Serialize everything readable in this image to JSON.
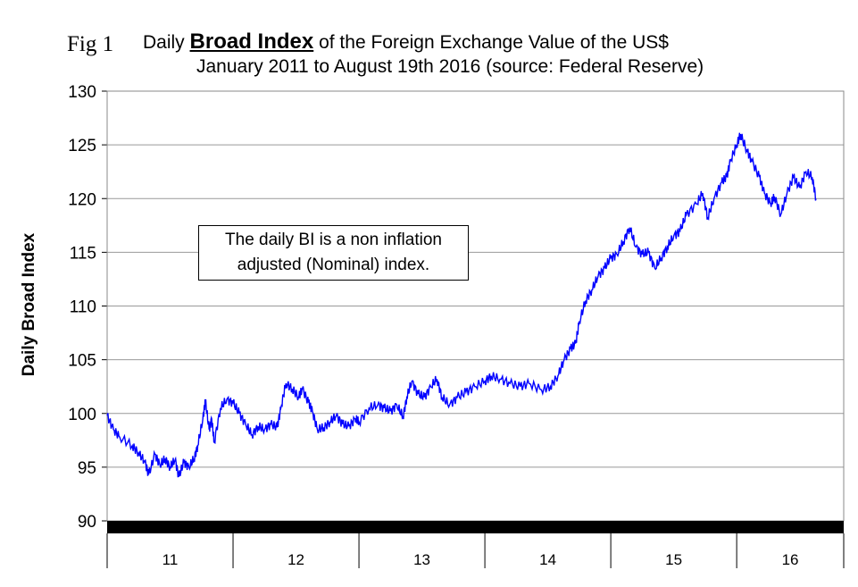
{
  "figure_label": "Fig 1",
  "chart_data": {
    "type": "line",
    "title_prefix": "Daily",
    "title_bold": "Broad Index",
    "title_suffix": "of the Foreign Exchange Value of the US$",
    "subtitle": "January 2011 to August 19th 2016 (source: Federal Reserve)",
    "ylabel": "Daily Broad Index",
    "xlabel": "",
    "ylim": [
      90,
      130
    ],
    "yticks": [
      "90",
      "95",
      "100",
      "105",
      "110",
      "115",
      "120",
      "125",
      "130"
    ],
    "xlim": [
      2011.0,
      2016.85
    ],
    "xtick_labels": [
      "11",
      "12",
      "13",
      "14",
      "15",
      "16"
    ],
    "grid": true,
    "line_color": "#0000ff",
    "annotation": [
      "The daily BI is a non inflation",
      "adjusted (Nominal) index."
    ],
    "series": [
      {
        "x": [
          2011.0,
          2011.05,
          2011.1,
          2011.2,
          2011.25,
          2011.3,
          2011.33,
          2011.38,
          2011.42,
          2011.46,
          2011.5,
          2011.54,
          2011.57,
          2011.61,
          2011.65,
          2011.69,
          2011.72,
          2011.76,
          2011.78,
          2011.81,
          2011.83,
          2011.85,
          2011.9,
          2011.95,
          2012.0,
          2012.05,
          2012.1,
          2012.15,
          2012.2,
          2012.25,
          2012.3,
          2012.35,
          2012.38,
          2012.42,
          2012.47,
          2012.52,
          2012.55,
          2012.6,
          2012.63,
          2012.67,
          2012.72,
          2012.77,
          2012.82,
          2012.87,
          2012.92,
          2012.97,
          2013.0,
          2013.08,
          2013.15,
          2013.2,
          2013.25,
          2013.3,
          2013.35,
          2013.38,
          2013.42,
          2013.47,
          2013.52,
          2013.57,
          2013.62,
          2013.66,
          2013.72,
          2013.78,
          2013.85,
          2013.92,
          2014.0,
          2014.05,
          2014.12,
          2014.2,
          2014.28,
          2014.35,
          2014.45,
          2014.52,
          2014.58,
          2014.63,
          2014.68,
          2014.72,
          2014.75,
          2014.8,
          2014.85,
          2014.9,
          2014.95,
          2015.0,
          2015.05,
          2015.1,
          2015.15,
          2015.2,
          2015.25,
          2015.3,
          2015.35,
          2015.4,
          2015.45,
          2015.5,
          2015.55,
          2015.6,
          2015.68,
          2015.73,
          2015.77,
          2015.82,
          2015.88,
          2015.92,
          2015.95,
          2016.0,
          2016.03,
          2016.08,
          2016.12,
          2016.18,
          2016.22,
          2016.27,
          2016.3,
          2016.35,
          2016.4,
          2016.45,
          2016.5,
          2016.55,
          2016.6,
          2016.63
        ],
        "y": [
          99.8,
          98.5,
          97.8,
          97,
          96.3,
          95.5,
          94.3,
          96.2,
          95.2,
          95.8,
          95,
          95.7,
          94.1,
          95.5,
          95,
          95.8,
          97,
          99.5,
          101.2,
          98.5,
          99.5,
          97.3,
          100.5,
          101.3,
          101,
          100,
          99,
          98,
          98.8,
          98.5,
          99,
          98.7,
          100.5,
          102.8,
          102.3,
          101.5,
          102.3,
          101,
          100.2,
          98.5,
          98.7,
          99.2,
          99.8,
          99,
          98.8,
          99.5,
          99.2,
          100.5,
          100.8,
          100.5,
          100.2,
          100.8,
          99.7,
          101.5,
          103,
          101.8,
          101.5,
          102.5,
          103.2,
          101.5,
          100.8,
          101.5,
          102,
          102.5,
          103,
          103.5,
          103.2,
          102.8,
          102.5,
          102.8,
          102.2,
          102.5,
          103.5,
          105,
          106,
          106.5,
          108.5,
          110.5,
          111.5,
          112.8,
          113.5,
          114.5,
          114.8,
          116,
          117.3,
          115.5,
          114.8,
          115,
          113.5,
          114.5,
          115.5,
          116.5,
          117,
          118.5,
          119.5,
          120.5,
          118.2,
          120,
          121.5,
          122,
          123.5,
          125,
          126,
          124.5,
          123.5,
          122,
          120.5,
          119.5,
          120.2,
          118.5,
          120.5,
          122,
          121,
          122.5,
          122,
          120
        ]
      }
    ]
  }
}
